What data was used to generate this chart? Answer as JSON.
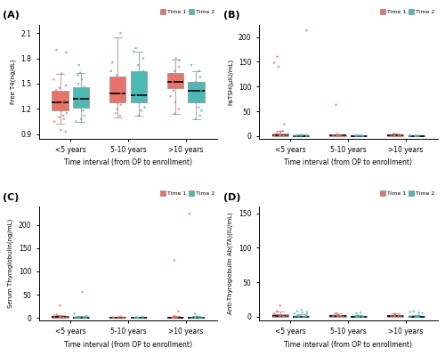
{
  "panel_labels": [
    "(A)",
    "(B)",
    "(C)",
    "(D)"
  ],
  "time1_color": "#E8736A",
  "time2_color": "#4DB8B4",
  "categories": [
    "<5 years",
    "5-10 years",
    ">10 years"
  ],
  "xlabel": "Time interval (from OP to enrollment)",
  "legend_labels": [
    "Time 1",
    "Time 2"
  ],
  "A_ylabel": "Free T4(ng/dL)",
  "A_ylim": [
    0.85,
    2.2
  ],
  "A_yticks": [
    0.9,
    1.2,
    1.5,
    1.8,
    2.1
  ],
  "A_t1_g1": {
    "q1": 1.18,
    "med": 1.28,
    "q3": 1.42,
    "whislo": 1.03,
    "whishi": 1.62,
    "pts": [
      1.05,
      1.08,
      1.1,
      1.12,
      1.15,
      1.18,
      1.2,
      1.22,
      1.24,
      1.26,
      1.28,
      1.3,
      1.32,
      1.35,
      1.38,
      1.4,
      1.42,
      1.45,
      1.48,
      1.55,
      1.62,
      1.87,
      1.9,
      0.95,
      0.93
    ]
  },
  "A_t1_g2": {
    "q1": 1.28,
    "med": 1.38,
    "q3": 1.58,
    "whislo": 1.1,
    "whishi": 2.05,
    "pts": [
      1.12,
      1.15,
      1.2,
      1.25,
      1.28,
      1.32,
      1.35,
      1.38,
      1.42,
      1.45,
      1.5,
      1.55,
      1.6,
      1.65,
      1.75,
      2.1
    ]
  },
  "A_t1_g3": {
    "q1": 1.45,
    "med": 1.52,
    "q3": 1.63,
    "whislo": 1.14,
    "whishi": 1.78,
    "pts": [
      1.14,
      1.2,
      1.28,
      1.35,
      1.42,
      1.48,
      1.52,
      1.55,
      1.6,
      1.65,
      1.7,
      1.78,
      1.8
    ]
  },
  "A_t2_g1": {
    "q1": 1.22,
    "med": 1.32,
    "q3": 1.46,
    "whislo": 1.05,
    "whishi": 1.63,
    "pts": [
      1.05,
      1.08,
      1.12,
      1.18,
      1.22,
      1.25,
      1.28,
      1.32,
      1.35,
      1.38,
      1.42,
      1.46,
      1.5,
      1.55,
      1.6,
      1.63,
      1.72
    ]
  },
  "A_t2_g2": {
    "q1": 1.28,
    "med": 1.36,
    "q3": 1.65,
    "whislo": 1.12,
    "whishi": 1.88,
    "pts": [
      1.12,
      1.18,
      1.22,
      1.28,
      1.32,
      1.36,
      1.4,
      1.45,
      1.52,
      1.58,
      1.65,
      1.72,
      1.8,
      1.88,
      1.92
    ]
  },
  "A_t2_g3": {
    "q1": 1.28,
    "med": 1.42,
    "q3": 1.52,
    "whislo": 1.08,
    "whishi": 1.65,
    "pts": [
      1.08,
      1.12,
      1.18,
      1.22,
      1.28,
      1.32,
      1.38,
      1.42,
      1.48,
      1.52,
      1.58,
      1.65,
      1.72
    ]
  },
  "B_ylabel": "hsTSH(μIU/mL)",
  "B_ylim": [
    -5,
    225
  ],
  "B_yticks": [
    0,
    50,
    100,
    150,
    200
  ],
  "B_t1_g1": {
    "q1": 0.5,
    "med": 1.5,
    "q3": 5.0,
    "whislo": 0.05,
    "whishi": 10.0,
    "pts": [
      0.1,
      0.3,
      0.5,
      0.8,
      1.0,
      1.5,
      2.0,
      3.0,
      5.0,
      8.0,
      10.0,
      24.0,
      140.0,
      148.0,
      160.0
    ]
  },
  "B_t1_g2": {
    "q1": 0.3,
    "med": 0.8,
    "q3": 1.8,
    "whislo": 0.05,
    "whishi": 3.5,
    "pts": [
      0.1,
      0.3,
      0.5,
      0.8,
      1.0,
      1.5,
      2.0,
      3.0,
      3.5,
      63.0
    ]
  },
  "B_t1_g3": {
    "q1": 0.4,
    "med": 1.0,
    "q3": 2.5,
    "whislo": 0.05,
    "whishi": 5.0,
    "pts": [
      0.1,
      0.3,
      0.5,
      1.0,
      1.5,
      2.0,
      3.0,
      5.0
    ]
  },
  "B_t2_g1": {
    "q1": 0.2,
    "med": 0.5,
    "q3": 1.2,
    "whislo": 0.05,
    "whishi": 2.5,
    "pts": [
      0.05,
      0.1,
      0.2,
      0.5,
      0.8,
      1.0,
      1.5,
      2.0,
      2.5,
      213.0
    ]
  },
  "B_t2_g2": {
    "q1": 0.1,
    "med": 0.3,
    "q3": 0.8,
    "whislo": 0.05,
    "whishi": 1.5,
    "pts": [
      0.05,
      0.1,
      0.2,
      0.3,
      0.5,
      0.8,
      1.0,
      1.5
    ]
  },
  "B_t2_g3": {
    "q1": 0.1,
    "med": 0.3,
    "q3": 0.6,
    "whislo": 0.05,
    "whishi": 1.0,
    "pts": [
      0.05,
      0.1,
      0.2,
      0.3,
      0.5,
      0.8,
      1.0
    ]
  },
  "C_ylabel": "Serum Thyroglobulin(ng/mL)",
  "C_ylim": [
    -5,
    240
  ],
  "C_yticks": [
    0,
    50,
    100,
    150,
    200
  ],
  "C_t1_g1": {
    "q1": 0.5,
    "med": 1.5,
    "q3": 4.0,
    "whislo": 0.05,
    "whishi": 7.0,
    "pts": [
      0.1,
      0.3,
      0.5,
      1.0,
      1.5,
      2.0,
      3.0,
      5.0,
      7.0,
      27.0
    ]
  },
  "C_t1_g2": {
    "q1": 0.2,
    "med": 0.5,
    "q3": 1.5,
    "whislo": 0.05,
    "whishi": 3.0,
    "pts": [
      0.1,
      0.2,
      0.5,
      0.8,
      1.0,
      1.5,
      2.0,
      3.0
    ]
  },
  "C_t1_g3": {
    "q1": 0.3,
    "med": 0.8,
    "q3": 2.0,
    "whislo": 0.05,
    "whishi": 4.0,
    "pts": [
      0.1,
      0.3,
      0.8,
      1.0,
      1.5,
      2.0,
      3.0,
      4.0,
      14.0,
      124.0
    ]
  },
  "C_t2_g1": {
    "q1": 0.2,
    "med": 0.5,
    "q3": 1.5,
    "whislo": 0.05,
    "whishi": 4.0,
    "pts": [
      0.05,
      0.1,
      0.2,
      0.5,
      0.8,
      1.0,
      1.5,
      2.0,
      4.0,
      9.0,
      56.0
    ]
  },
  "C_t2_g2": {
    "q1": 0.1,
    "med": 0.3,
    "q3": 0.8,
    "whislo": 0.05,
    "whishi": 2.0,
    "pts": [
      0.05,
      0.1,
      0.2,
      0.3,
      0.5,
      0.8,
      1.0,
      2.0
    ]
  },
  "C_t2_g3": {
    "q1": 0.1,
    "med": 0.4,
    "q3": 1.0,
    "whislo": 0.05,
    "whishi": 3.5,
    "pts": [
      0.05,
      0.1,
      0.2,
      0.5,
      1.0,
      2.0,
      3.5,
      9.0,
      224.0
    ]
  },
  "D_ylabel": "Anti-Thyroglobulin Ab(TA)(IU/mL)",
  "D_ylim": [
    -5,
    160
  ],
  "D_yticks": [
    0,
    50,
    100,
    150
  ],
  "D_t1_g1": {
    "q1": 0.5,
    "med": 1.2,
    "q3": 3.5,
    "whislo": 0.05,
    "whishi": 8.0,
    "pts": [
      0.1,
      0.3,
      0.5,
      1.0,
      1.5,
      2.0,
      3.0,
      5.0,
      8.0,
      16.0
    ]
  },
  "D_t1_g2": {
    "q1": 0.3,
    "med": 0.8,
    "q3": 2.0,
    "whislo": 0.05,
    "whishi": 5.0,
    "pts": [
      0.1,
      0.3,
      0.5,
      0.8,
      1.0,
      1.5,
      2.0,
      3.0,
      5.0
    ]
  },
  "D_t1_g3": {
    "q1": 0.3,
    "med": 0.8,
    "q3": 2.0,
    "whislo": 0.05,
    "whishi": 4.5,
    "pts": [
      0.1,
      0.3,
      0.5,
      0.8,
      1.0,
      1.5,
      2.0,
      3.0,
      4.5
    ]
  },
  "D_t2_g1": {
    "q1": 0.2,
    "med": 0.5,
    "q3": 1.5,
    "whislo": 0.05,
    "whishi": 3.5,
    "pts": [
      0.05,
      0.1,
      0.2,
      0.5,
      0.8,
      1.0,
      1.5,
      2.0,
      3.5,
      5.0,
      6.0,
      7.0,
      8.0,
      10.0
    ]
  },
  "D_t2_g2": {
    "q1": 0.1,
    "med": 0.3,
    "q3": 0.8,
    "whislo": 0.05,
    "whishi": 2.0,
    "pts": [
      0.05,
      0.1,
      0.2,
      0.3,
      0.5,
      0.8,
      1.0,
      2.0,
      5.0,
      6.0
    ]
  },
  "D_t2_g3": {
    "q1": 0.1,
    "med": 0.3,
    "q3": 0.7,
    "whislo": 0.05,
    "whishi": 2.0,
    "pts": [
      0.05,
      0.1,
      0.2,
      0.3,
      0.5,
      0.8,
      1.0,
      2.0,
      5.0,
      6.0,
      7.0,
      8.0
    ]
  }
}
